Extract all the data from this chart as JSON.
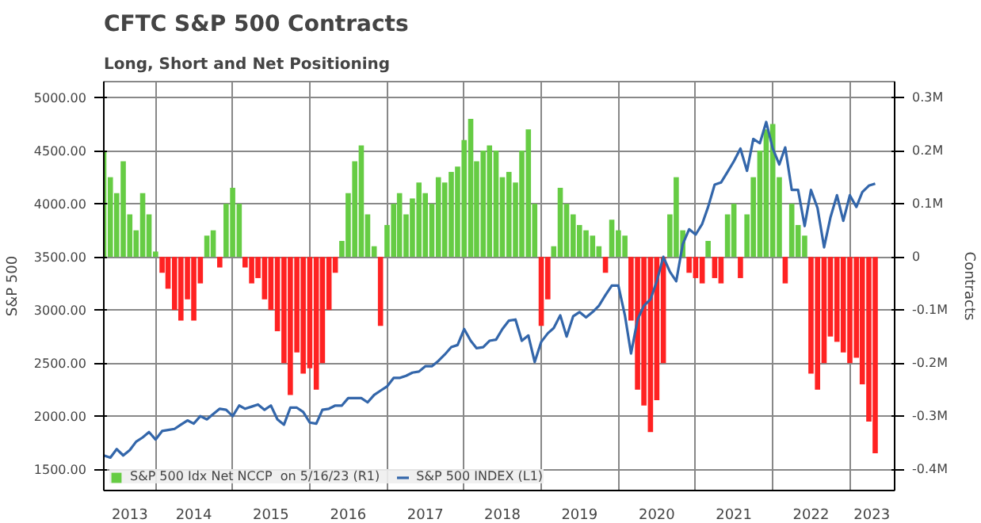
{
  "chart_data": {
    "type": "bar",
    "title": "CFTC S&P 500 Contracts",
    "subtitle": "Long, Short and Net Positioning",
    "ylabel": "S&P 500",
    "y2label": "Contracts",
    "x": [
      "2013-05",
      "2013-06",
      "2013-07",
      "2013-08",
      "2013-09",
      "2013-10",
      "2013-11",
      "2013-12",
      "2014-01",
      "2014-02",
      "2014-03",
      "2014-04",
      "2014-05",
      "2014-06",
      "2014-07",
      "2014-08",
      "2014-09",
      "2014-10",
      "2014-11",
      "2014-12",
      "2015-01",
      "2015-02",
      "2015-03",
      "2015-04",
      "2015-05",
      "2015-06",
      "2015-07",
      "2015-08",
      "2015-09",
      "2015-10",
      "2015-11",
      "2015-12",
      "2016-01",
      "2016-02",
      "2016-03",
      "2016-04",
      "2016-05",
      "2016-06",
      "2016-07",
      "2016-08",
      "2016-09",
      "2016-10",
      "2016-11",
      "2016-12",
      "2017-01",
      "2017-02",
      "2017-03",
      "2017-04",
      "2017-05",
      "2017-06",
      "2017-07",
      "2017-08",
      "2017-09",
      "2017-10",
      "2017-11",
      "2017-12",
      "2018-01",
      "2018-02",
      "2018-03",
      "2018-04",
      "2018-05",
      "2018-06",
      "2018-07",
      "2018-08",
      "2018-09",
      "2018-10",
      "2018-11",
      "2018-12",
      "2019-01",
      "2019-02",
      "2019-03",
      "2019-04",
      "2019-05",
      "2019-06",
      "2019-07",
      "2019-08",
      "2019-09",
      "2019-10",
      "2019-11",
      "2019-12",
      "2020-01",
      "2020-02",
      "2020-03",
      "2020-04",
      "2020-05",
      "2020-06",
      "2020-07",
      "2020-08",
      "2020-09",
      "2020-10",
      "2020-11",
      "2020-12",
      "2021-01",
      "2021-02",
      "2021-03",
      "2021-04",
      "2021-05",
      "2021-06",
      "2021-07",
      "2021-08",
      "2021-09",
      "2021-10",
      "2021-11",
      "2021-12",
      "2022-01",
      "2022-02",
      "2022-03",
      "2022-04",
      "2022-05",
      "2022-06",
      "2022-07",
      "2022-08",
      "2022-09",
      "2022-10",
      "2022-11",
      "2022-12",
      "2023-01",
      "2023-02",
      "2023-03",
      "2023-04",
      "2023-05"
    ],
    "series": [
      {
        "name": "S&P 500 Idx Net NCCP  on 5/16/23 (R1)",
        "axis": "y2",
        "color": "#66cc44",
        "values": [
          0.2,
          0.15,
          0.12,
          0.18,
          0.08,
          0.05,
          0.12,
          0.08,
          0.01,
          -0.03,
          -0.06,
          -0.1,
          -0.12,
          -0.08,
          -0.12,
          -0.05,
          0.04,
          0.05,
          -0.02,
          0.1,
          0.13,
          0.1,
          -0.02,
          -0.05,
          -0.04,
          -0.08,
          -0.1,
          -0.14,
          -0.2,
          -0.26,
          -0.18,
          -0.22,
          -0.21,
          -0.25,
          -0.2,
          -0.1,
          -0.03,
          0.03,
          0.12,
          0.18,
          0.21,
          0.08,
          0.02,
          -0.13,
          0.06,
          0.1,
          0.12,
          0.08,
          0.11,
          0.14,
          0.12,
          0.1,
          0.15,
          0.14,
          0.16,
          0.17,
          0.22,
          0.26,
          0.18,
          0.2,
          0.21,
          0.2,
          0.15,
          0.16,
          0.14,
          0.2,
          0.24,
          0.1,
          -0.13,
          -0.08,
          0.02,
          0.13,
          0.1,
          0.08,
          0.06,
          0.05,
          0.04,
          0.02,
          -0.03,
          0.07,
          0.05,
          0.04,
          -0.12,
          -0.25,
          -0.28,
          -0.33,
          -0.27,
          -0.2,
          0.08,
          0.15,
          0.05,
          -0.03,
          -0.04,
          -0.05,
          0.03,
          -0.04,
          -0.05,
          0.08,
          0.1,
          -0.04,
          0.08,
          0.15,
          0.2,
          0.24,
          0.25,
          0.15,
          -0.05,
          0.1,
          0.06,
          0.04,
          -0.22,
          -0.25,
          -0.2,
          -0.15,
          -0.16,
          -0.18,
          -0.2,
          -0.19,
          -0.24,
          -0.31,
          -0.37
        ],
        "colors": [
          "#66cc44",
          "#66cc44",
          "#66cc44",
          "#66cc44",
          "#66cc44",
          "#66cc44",
          "#66cc44",
          "#66cc44",
          "#66cc44",
          "#ff2222",
          "#ff2222",
          "#ff2222",
          "#ff2222",
          "#ff2222",
          "#ff2222",
          "#ff2222",
          "#66cc44",
          "#66cc44",
          "#ff2222",
          "#66cc44",
          "#66cc44",
          "#66cc44",
          "#ff2222",
          "#ff2222",
          "#ff2222",
          "#ff2222",
          "#ff2222",
          "#ff2222",
          "#ff2222",
          "#ff2222",
          "#ff2222",
          "#ff2222",
          "#ff2222",
          "#ff2222",
          "#ff2222",
          "#ff2222",
          "#ff2222",
          "#66cc44",
          "#66cc44",
          "#66cc44",
          "#66cc44",
          "#66cc44",
          "#66cc44",
          "#ff2222",
          "#66cc44",
          "#66cc44",
          "#66cc44",
          "#66cc44",
          "#66cc44",
          "#66cc44",
          "#66cc44",
          "#66cc44",
          "#66cc44",
          "#66cc44",
          "#66cc44",
          "#66cc44",
          "#66cc44",
          "#66cc44",
          "#66cc44",
          "#66cc44",
          "#66cc44",
          "#66cc44",
          "#66cc44",
          "#66cc44",
          "#66cc44",
          "#66cc44",
          "#66cc44",
          "#66cc44",
          "#ff2222",
          "#ff2222",
          "#66cc44",
          "#66cc44",
          "#66cc44",
          "#66cc44",
          "#66cc44",
          "#66cc44",
          "#66cc44",
          "#66cc44",
          "#ff2222",
          "#66cc44",
          "#66cc44",
          "#66cc44",
          "#ff2222",
          "#ff2222",
          "#ff2222",
          "#ff2222",
          "#ff2222",
          "#ff2222",
          "#66cc44",
          "#66cc44",
          "#66cc44",
          "#ff2222",
          "#ff2222",
          "#ff2222",
          "#66cc44",
          "#ff2222",
          "#ff2222",
          "#66cc44",
          "#66cc44",
          "#ff2222",
          "#66cc44",
          "#66cc44",
          "#66cc44",
          "#66cc44",
          "#66cc44",
          "#66cc44",
          "#ff2222",
          "#66cc44",
          "#66cc44",
          "#66cc44",
          "#ff2222",
          "#ff2222",
          "#ff2222",
          "#ff2222",
          "#ff2222",
          "#ff2222",
          "#ff2222",
          "#ff2222",
          "#ff2222",
          "#ff2222",
          "#ff2222"
        ]
      },
      {
        "name": "S&P 500 INDEX (L1)",
        "type": "line",
        "color": "#3366aa",
        "values": [
          1630,
          1610,
          1690,
          1630,
          1680,
          1760,
          1800,
          1850,
          1780,
          1860,
          1870,
          1880,
          1920,
          1960,
          1930,
          2000,
          1970,
          2020,
          2070,
          2060,
          2000,
          2100,
          2070,
          2090,
          2110,
          2060,
          2100,
          1970,
          1920,
          2080,
          2080,
          2040,
          1940,
          1930,
          2060,
          2070,
          2100,
          2100,
          2170,
          2170,
          2170,
          2130,
          2200,
          2240,
          2280,
          2360,
          2360,
          2380,
          2410,
          2420,
          2470,
          2470,
          2520,
          2580,
          2650,
          2670,
          2820,
          2710,
          2640,
          2650,
          2710,
          2720,
          2820,
          2900,
          2910,
          2710,
          2760,
          2510,
          2700,
          2780,
          2830,
          2950,
          2750,
          2940,
          2980,
          2930,
          2980,
          3040,
          3140,
          3230,
          3230,
          2950,
          2590,
          2910,
          3040,
          3100,
          3270,
          3500,
          3360,
          3270,
          3620,
          3760,
          3710,
          3810,
          3970,
          4180,
          4200,
          4300,
          4400,
          4520,
          4310,
          4610,
          4570,
          4770,
          4520,
          4370,
          4530,
          4130,
          4130,
          3790,
          4130,
          3960,
          3590,
          3870,
          4080,
          3840,
          4080,
          3970,
          4110,
          4170,
          4190
        ]
      }
    ],
    "xlim": [
      "2013-05-01",
      "2023-08-01"
    ],
    "xticks": [
      {
        "value": "2013-09-01",
        "label": "2013"
      },
      {
        "value": "2014-01-01",
        "label": null
      },
      {
        "value": "2014-07-01",
        "label": "2014"
      },
      {
        "value": "2015-01-01",
        "label": null
      },
      {
        "value": "2015-07-01",
        "label": "2015"
      },
      {
        "value": "2016-01-01",
        "label": null
      },
      {
        "value": "2016-07-01",
        "label": "2016"
      },
      {
        "value": "2017-01-01",
        "label": null
      },
      {
        "value": "2017-07-01",
        "label": "2017"
      },
      {
        "value": "2018-01-01",
        "label": null
      },
      {
        "value": "2018-07-01",
        "label": "2018"
      },
      {
        "value": "2019-01-01",
        "label": null
      },
      {
        "value": "2019-07-01",
        "label": "2019"
      },
      {
        "value": "2020-01-01",
        "label": null
      },
      {
        "value": "2020-07-01",
        "label": "2020"
      },
      {
        "value": "2021-01-01",
        "label": null
      },
      {
        "value": "2021-07-01",
        "label": "2021"
      },
      {
        "value": "2022-01-01",
        "label": null
      },
      {
        "value": "2022-07-01",
        "label": "2022"
      },
      {
        "value": "2023-01-01",
        "label": null
      },
      {
        "value": "2023-04-15",
        "label": "2023"
      }
    ],
    "ylim": [
      1300,
      5150
    ],
    "yticks": [
      {
        "value": 1500,
        "label": "1500.00"
      },
      {
        "value": 2000,
        "label": "2000.00"
      },
      {
        "value": 2500,
        "label": "2500.00"
      },
      {
        "value": 3000,
        "label": "3000.00"
      },
      {
        "value": 3500,
        "label": "3500.00"
      },
      {
        "value": 4000,
        "label": "4000.00"
      },
      {
        "value": 4500,
        "label": "4500.00"
      },
      {
        "value": 5000,
        "label": "5000.00"
      }
    ],
    "y2lim": [
      -0.44,
      0.33
    ],
    "y2ticks": [
      {
        "value": -0.4,
        "label": "-0.4M"
      },
      {
        "value": -0.3,
        "label": "-0.3M"
      },
      {
        "value": -0.2,
        "label": "-0.2M"
      },
      {
        "value": -0.1,
        "label": "-0.1M"
      },
      {
        "value": 0,
        "label": "0"
      },
      {
        "value": 0.1,
        "label": "0.1M"
      },
      {
        "value": 0.2,
        "label": "0.2M"
      },
      {
        "value": 0.3,
        "label": "0.3M"
      }
    ],
    "grid": true,
    "legend": "bottom left"
  }
}
